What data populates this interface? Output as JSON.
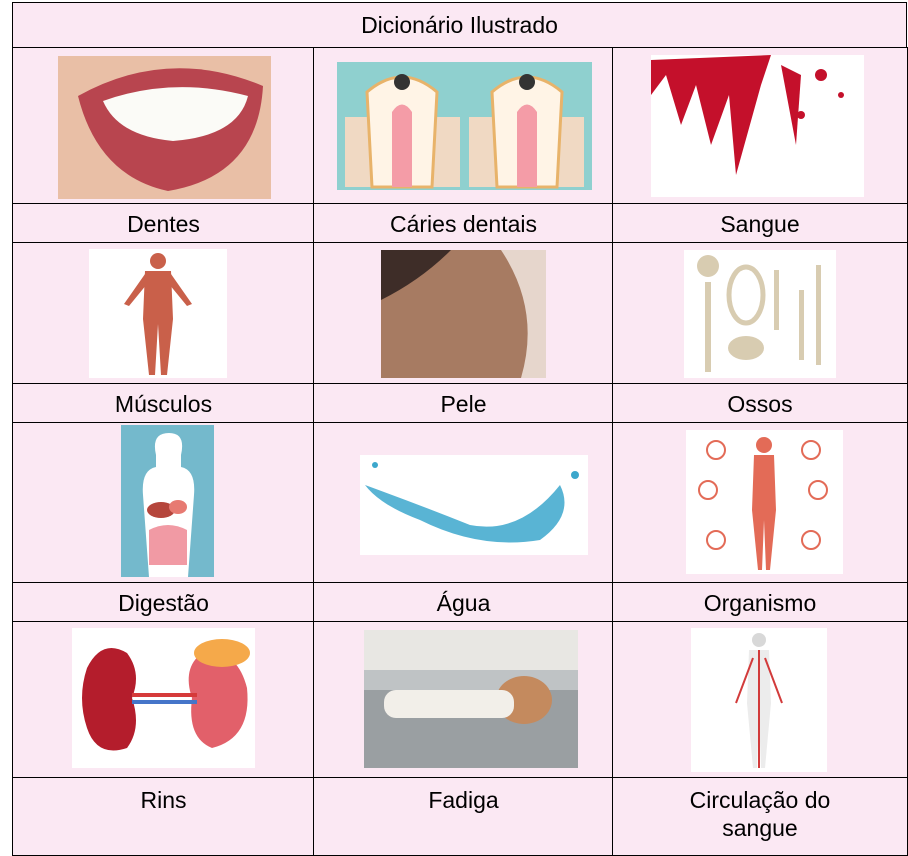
{
  "table": {
    "title": "Dicionário Ilustrado",
    "rows": [
      [
        "Dentes",
        "Cáries dentais",
        "Sangue"
      ],
      [
        "Músculos",
        "Pele",
        "Ossos"
      ],
      [
        "Digestão",
        "Água",
        "Organismo"
      ],
      [
        "Rins",
        "Fadiga",
        "Circulação do sangue"
      ]
    ]
  }
}
